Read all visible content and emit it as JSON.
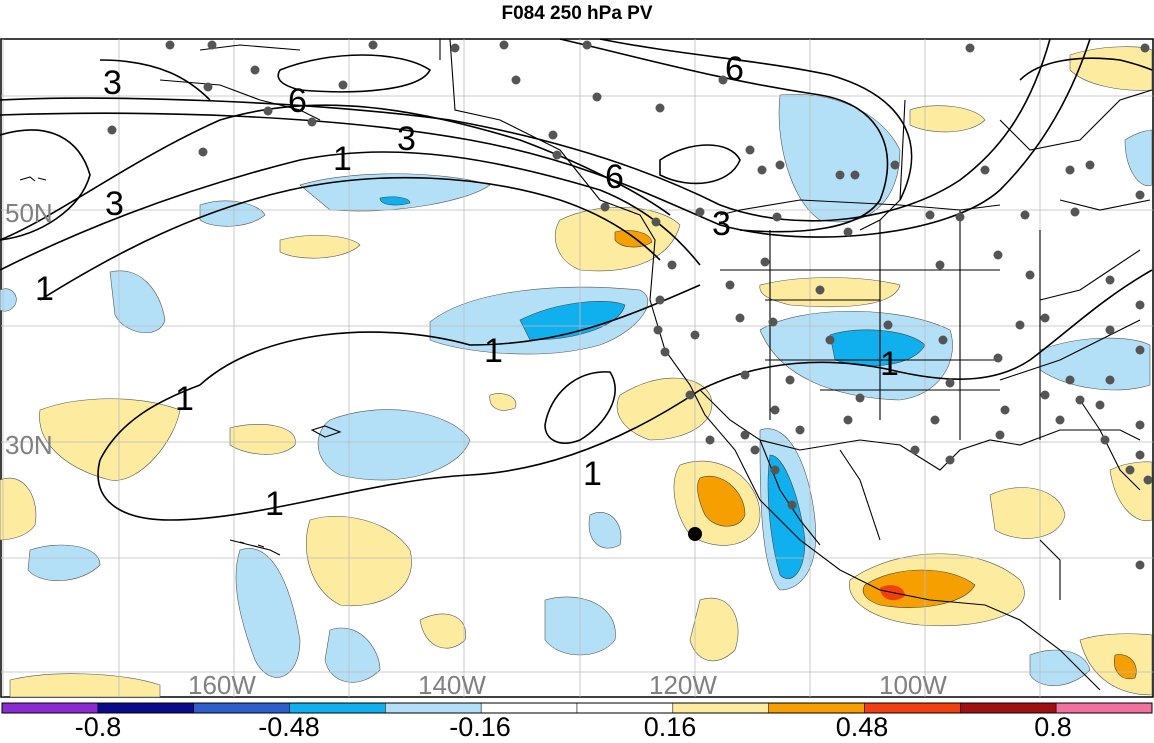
{
  "title": "F084 250 hPa PV",
  "map": {
    "lat_labels": [
      "50N",
      "30N"
    ],
    "lon_labels": [
      "160W",
      "140W",
      "120W",
      "100W"
    ],
    "contour_labels": [
      "3",
      "6",
      "3",
      "1",
      "3",
      "1",
      "6",
      "6",
      "3",
      "1",
      "1",
      "1",
      "1",
      "1"
    ],
    "colors": {
      "light_blue": "#b3e0f7",
      "blue": "#10b0ee",
      "light_yellow": "#fdeba0",
      "orange": "#f5a000",
      "red_orange": "#f04010"
    }
  },
  "colorbar": {
    "labels": [
      "-0.8",
      "-0.48",
      "-0.16",
      "0.16",
      "0.48",
      "0.8"
    ],
    "colors": [
      "#8a2bd2",
      "#0a0a8a",
      "#2e5ec9",
      "#10b0ee",
      "#b3e0f7",
      "#ffffff",
      "#ffffff",
      "#fdeba0",
      "#f5a000",
      "#f04010",
      "#a01010",
      "#f070a0"
    ]
  }
}
